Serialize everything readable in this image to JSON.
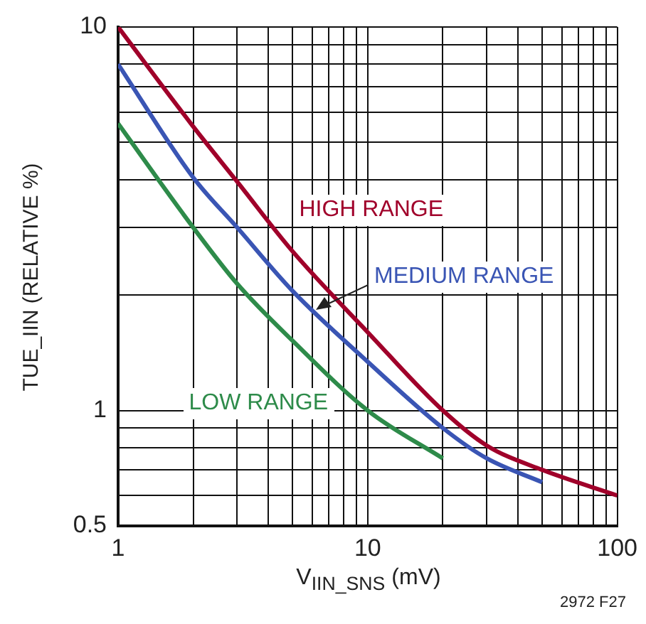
{
  "chart_data": {
    "type": "line",
    "xlabel": "V$_{IIN_SNS}$ (mV)",
    "ylabel": "TUE_IIN (RELATIVE %)",
    "log": "xy",
    "grid": true,
    "legend": false,
    "marker": "none",
    "line_style": "solid",
    "xlim": [
      1,
      100
    ],
    "ylim": [
      0.5,
      10
    ],
    "xticks": [
      1,
      {
        "value": 2,
        "label": null
      },
      {
        "value": 3,
        "label": null
      },
      {
        "value": 4,
        "label": null
      },
      {
        "value": 5,
        "label": null
      },
      {
        "value": 6,
        "label": null
      },
      {
        "value": 7,
        "label": null
      },
      {
        "value": 8,
        "label": null
      },
      {
        "value": 9,
        "label": null
      },
      10,
      {
        "value": 20,
        "label": null
      },
      {
        "value": 30,
        "label": null
      },
      {
        "value": 40,
        "label": null
      },
      {
        "value": 50,
        "label": null
      },
      {
        "value": 60,
        "label": null
      },
      {
        "value": 70,
        "label": null
      },
      {
        "value": 80,
        "label": null
      },
      {
        "value": 90,
        "label": null
      },
      100
    ],
    "yticks": [
      0.5,
      {
        "value": 0.6,
        "label": null
      },
      {
        "value": 0.7,
        "label": null
      },
      {
        "value": 0.8,
        "label": null
      },
      {
        "value": 0.9,
        "label": null
      },
      1,
      {
        "value": 2,
        "label": null
      },
      {
        "value": 3,
        "label": null
      },
      {
        "value": 4,
        "label": null
      },
      {
        "value": 5,
        "label": null
      },
      {
        "value": 6,
        "label": null
      },
      {
        "value": 7,
        "label": null
      },
      {
        "value": 8,
        "label": null
      },
      {
        "value": 9,
        "label": null
      },
      10
    ],
    "series": [
      {
        "name": "HIGH RANGE",
        "color": "#a0002a",
        "x": [
          1,
          2,
          3,
          5,
          10,
          20,
          30,
          50,
          100
        ],
        "values": [
          10,
          5.5,
          3.95,
          2.6,
          1.6,
          1.0,
          0.81,
          0.7,
          0.6
        ]
      },
      {
        "name": "MEDIUM RANGE",
        "color": "#3a55b4",
        "x": [
          1,
          2,
          3,
          5,
          10,
          20,
          30,
          50
        ],
        "values": [
          8,
          4.05,
          3.0,
          2.05,
          1.34,
          0.9,
          0.75,
          0.65
        ]
      },
      {
        "name": "LOW RANGE",
        "color": "#2e8b4a",
        "x": [
          1,
          2,
          3,
          5,
          10,
          20
        ],
        "values": [
          5.6,
          3.0,
          2.14,
          1.52,
          1.0,
          0.75
        ]
      }
    ],
    "annotations": [
      "2972 F27"
    ]
  }
}
